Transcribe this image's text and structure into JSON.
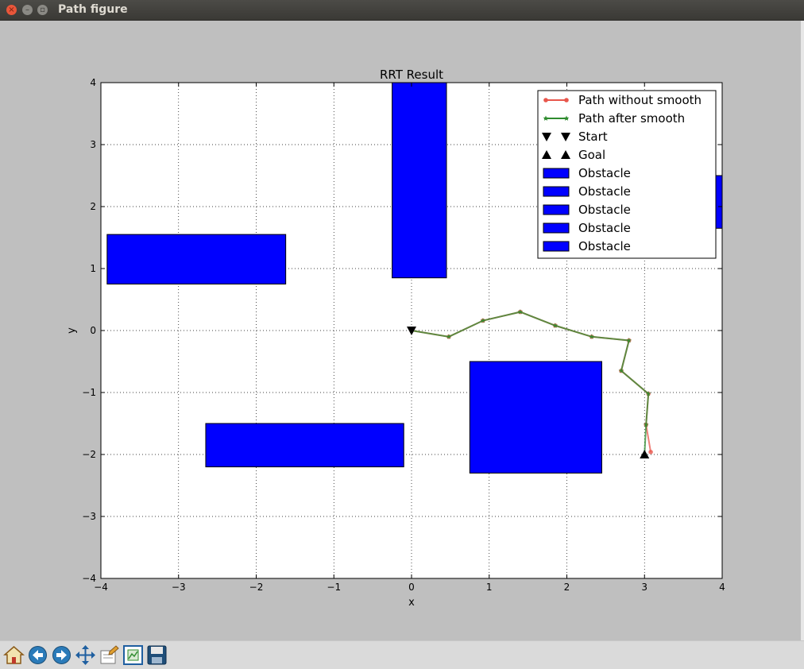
{
  "window": {
    "title": "Path figure"
  },
  "toolbar": {
    "buttons": [
      {
        "name": "home-button",
        "icon": "home-icon"
      },
      {
        "name": "back-button",
        "icon": "back-arrow-icon"
      },
      {
        "name": "forward-button",
        "icon": "forward-arrow-icon"
      },
      {
        "name": "pan-button",
        "icon": "pan-icon"
      },
      {
        "name": "configure-subplots-button",
        "icon": "subplots-icon"
      },
      {
        "name": "zoom-button",
        "icon": "zoom-rect-icon"
      },
      {
        "name": "save-button",
        "icon": "save-icon"
      }
    ]
  },
  "chart_data": {
    "type": "line",
    "title": "RRT Result",
    "xlabel": "x",
    "ylabel": "y",
    "xlim": [
      -4,
      4
    ],
    "ylim": [
      -4,
      4
    ],
    "grid": true,
    "legend_position": "top-right",
    "xticks": [
      "−4",
      "−3",
      "−2",
      "−1",
      "0",
      "1",
      "2",
      "3",
      "4"
    ],
    "yticks": [
      "−4",
      "−3",
      "−2",
      "−1",
      "0",
      "1",
      "2",
      "3",
      "4"
    ],
    "legend": [
      {
        "label": "Path without smooth",
        "kind": "line-circle",
        "color": "#e8564c"
      },
      {
        "label": "Path after smooth",
        "kind": "line-star",
        "color": "#2e8b2e"
      },
      {
        "label": "Start",
        "kind": "tri-down",
        "color": "#000000"
      },
      {
        "label": "Goal",
        "kind": "tri-up",
        "color": "#000000"
      },
      {
        "label": "Obstacle",
        "kind": "patch",
        "color": "#0000ff"
      },
      {
        "label": "Obstacle",
        "kind": "patch",
        "color": "#0000ff"
      },
      {
        "label": "Obstacle",
        "kind": "patch",
        "color": "#0000ff"
      },
      {
        "label": "Obstacle",
        "kind": "patch",
        "color": "#0000ff"
      },
      {
        "label": "Obstacle",
        "kind": "patch",
        "color": "#0000ff"
      }
    ],
    "obstacles": [
      {
        "x": -3.92,
        "y": 0.75,
        "w": 2.3,
        "h": 0.8
      },
      {
        "x": -0.25,
        "y": 0.85,
        "w": 0.7,
        "h": 3.15
      },
      {
        "x": 3.9,
        "y": 1.65,
        "w": 0.1,
        "h": 0.85
      },
      {
        "x": -2.65,
        "y": -2.2,
        "w": 2.55,
        "h": 0.7
      },
      {
        "x": 0.75,
        "y": -2.3,
        "w": 1.7,
        "h": 1.8
      }
    ],
    "series": [
      {
        "name": "Path without smooth",
        "color": "#e8564c",
        "x": [
          0,
          0.48,
          0.92,
          1.4,
          1.85,
          2.32,
          2.8,
          2.7,
          3.05,
          3.02,
          3.08
        ],
        "y": [
          0,
          -0.1,
          0.16,
          0.3,
          0.08,
          -0.1,
          -0.16,
          -0.65,
          -1.02,
          -1.52,
          -1.96
        ]
      },
      {
        "name": "Path after smooth",
        "color": "#2e8b2e",
        "x": [
          0,
          0.48,
          0.92,
          1.4,
          1.85,
          2.32,
          2.8,
          2.7,
          3.05,
          3.02,
          3.0
        ],
        "y": [
          0,
          -0.1,
          0.16,
          0.3,
          0.08,
          -0.1,
          -0.16,
          -0.65,
          -1.02,
          -1.52,
          -2.0
        ]
      }
    ],
    "start": {
      "x": 0,
      "y": 0
    },
    "goal": {
      "x": 3,
      "y": -2
    }
  }
}
